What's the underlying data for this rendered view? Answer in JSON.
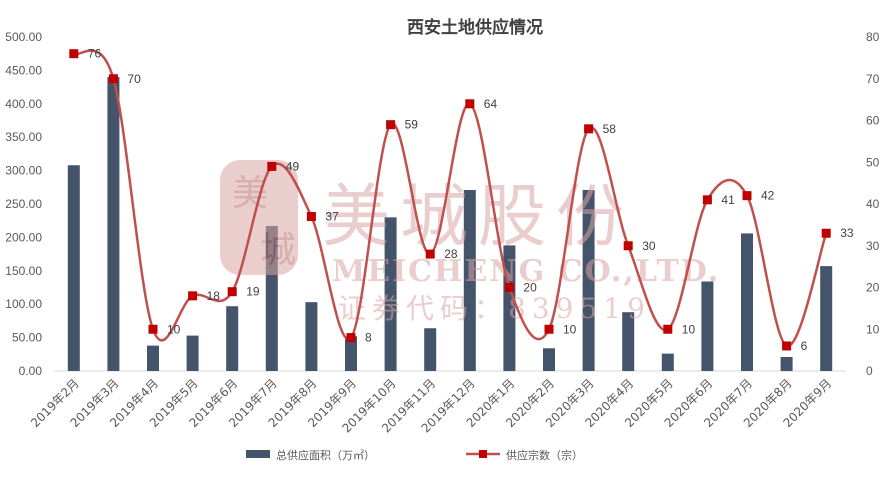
{
  "chart_data": {
    "type": "bar+line",
    "title": "西安土地供应情况",
    "categories": [
      "2019年2月",
      "2019年3月",
      "2019年4月",
      "2019年5月",
      "2019年6月",
      "2019年7月",
      "2019年8月",
      "2019年9月",
      "2019年10月",
      "2019年11月",
      "2019年12月",
      "2020年1月",
      "2020年2月",
      "2020年3月",
      "2020年4月",
      "2020年5月",
      "2020年6月",
      "2020年7月",
      "2020年8月",
      "2020年9月"
    ],
    "series": [
      {
        "name": "总供应面积（万㎡）",
        "type": "bar",
        "axis": "left",
        "color": "#44546a",
        "values": [
          308,
          440,
          38,
          53,
          97,
          217,
          103,
          52,
          230,
          64,
          271,
          188,
          34,
          271,
          88,
          26,
          134,
          206,
          21,
          157
        ]
      },
      {
        "name": "供应宗数（宗）",
        "type": "line",
        "axis": "right",
        "color": "#c0504d",
        "marker_color": "#c00000",
        "values": [
          76,
          70,
          10,
          18,
          19,
          49,
          37,
          8,
          59,
          28,
          64,
          20,
          10,
          58,
          30,
          10,
          41,
          42,
          6,
          33
        ]
      }
    ],
    "y_left": {
      "min": 0,
      "max": 500,
      "step": 50,
      "tick_labels": [
        "0.00",
        "50.00",
        "100.00",
        "150.00",
        "200.00",
        "250.00",
        "300.00",
        "350.00",
        "400.00",
        "450.00",
        "500.00"
      ]
    },
    "y_right": {
      "min": 0,
      "max": 80,
      "step": 10,
      "tick_labels": [
        "0",
        "10",
        "20",
        "30",
        "40",
        "50",
        "60",
        "70",
        "80"
      ]
    },
    "grid": false,
    "legend_position": "bottom"
  },
  "watermark": {
    "logo_chars": "美城",
    "name": "美城股份",
    "english": "MEICHENG CO.,LTD.",
    "code": "证券代码：839519",
    "color": "#d9a5a5"
  }
}
